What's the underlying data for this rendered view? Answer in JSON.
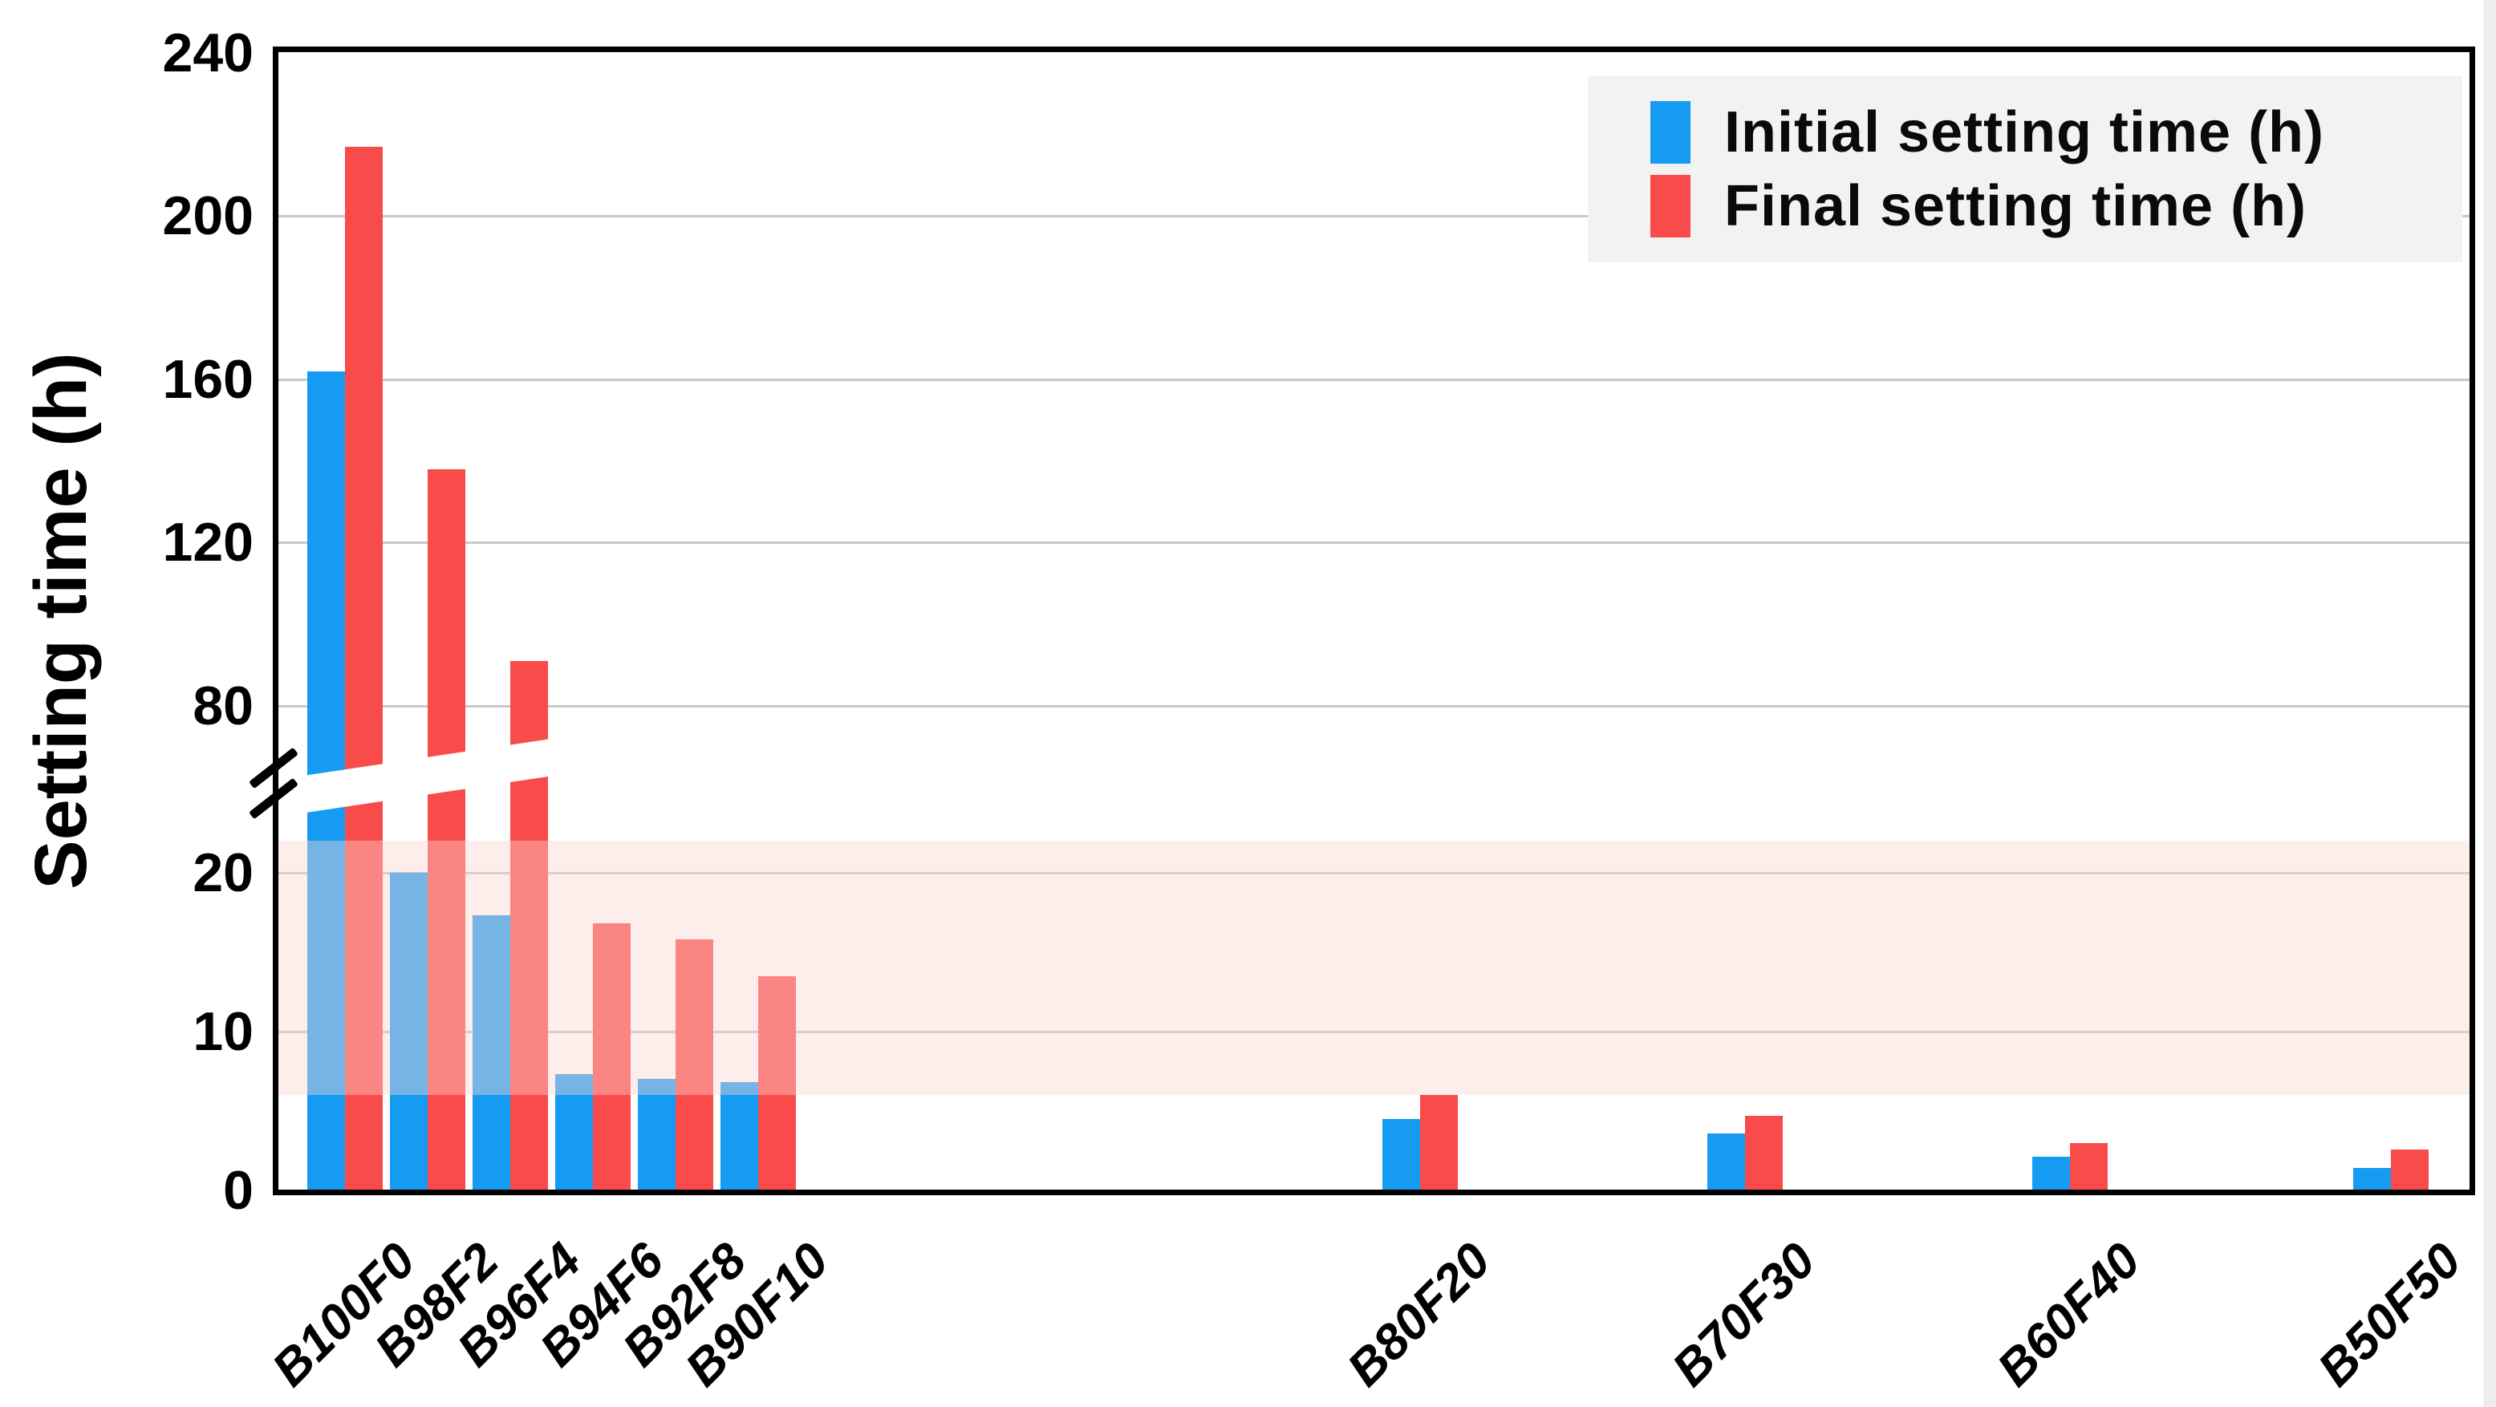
{
  "chart_data": {
    "type": "bar",
    "title": "",
    "xlabel": "",
    "ylabel": "Setting time (h)",
    "categories": [
      "B100F0",
      "B98F2",
      "B96F4",
      "B94F6",
      "B92F8",
      "B90F10",
      "B80F20",
      "B70F30",
      "B60F40",
      "B50F50"
    ],
    "series": [
      {
        "name": "Initial setting time (h)",
        "color": "#169BF3",
        "values": [
          162,
          20,
          17.3,
          7.3,
          7.0,
          6.8,
          4.5,
          3.6,
          2.1,
          1.4
        ]
      },
      {
        "name": "Final  setting time (h)",
        "color": "#FA4B4B",
        "values": [
          217,
          138,
          91,
          16.8,
          15.8,
          13.5,
          6.0,
          4.7,
          3.0,
          2.6
        ]
      }
    ],
    "y_axis": {
      "lower_ticks": [
        0,
        10,
        20
      ],
      "upper_ticks": [
        80,
        120,
        160,
        200,
        240
      ],
      "break": {
        "between": [
          24,
          61
        ],
        "style": "double-slash-with-white-gap"
      }
    },
    "highlight_band": {
      "from": 6,
      "to": 22,
      "color": "#F9EDEA"
    },
    "legend_position": "top-right",
    "grid": true
  }
}
